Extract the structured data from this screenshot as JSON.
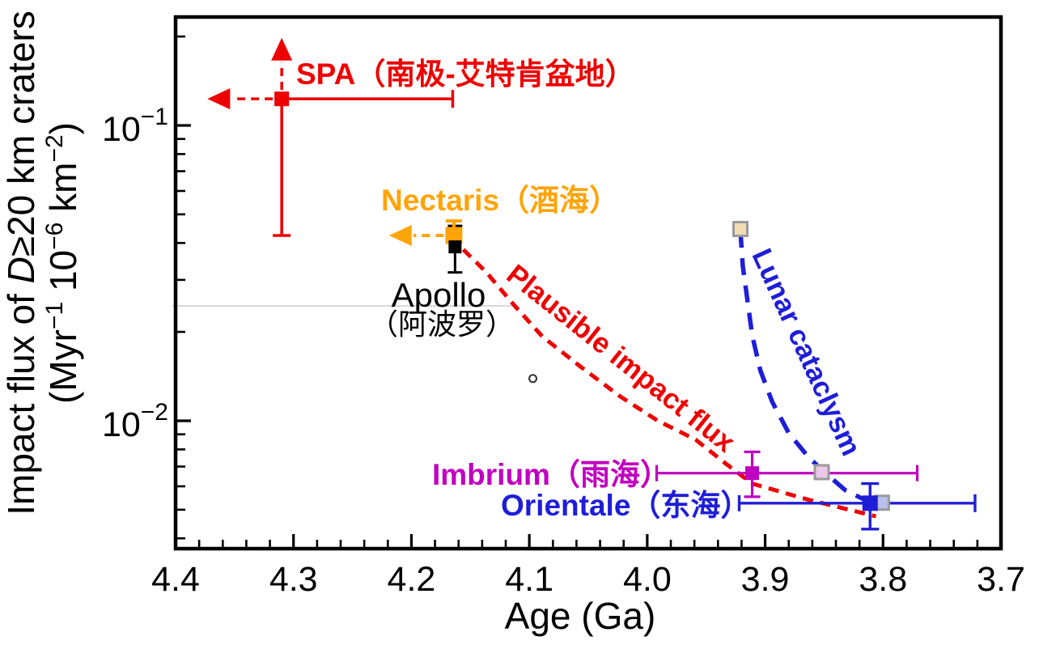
{
  "chart_data": {
    "type": "scatter",
    "title": "",
    "xlabel": "Age (Ga)",
    "ylabel": "Impact flux of D≥20 km craters (Myr−1 10−6 km−2)",
    "ylabel_line1_parts": [
      {
        "t": "Impact flux of "
      },
      {
        "t": "D",
        "i": true
      },
      {
        "t": "≥20 km craters"
      }
    ],
    "ylabel_line2_parts": [
      {
        "t": "(Myr"
      },
      {
        "t": "−1",
        "sup": true
      },
      {
        "t": " 10"
      },
      {
        "t": "−6",
        "sup": true
      },
      {
        "t": " km"
      },
      {
        "t": "−2",
        "sup": true
      },
      {
        "t": ")"
      }
    ],
    "x_axis": {
      "min": 4.4,
      "max": 3.7,
      "reversed": true,
      "tick_values": [
        4.4,
        4.3,
        4.2,
        4.1,
        4.0,
        3.9,
        3.8,
        3.7
      ],
      "tick_labels": [
        "4.4",
        "4.3",
        "4.2",
        "4.1",
        "4.0",
        "3.9",
        "3.8",
        "3.7"
      ],
      "minor_tick_step": 0.02,
      "grid": false
    },
    "y_axis": {
      "scale": "log",
      "range_top": 0.233,
      "range_bottom": 0.0037,
      "major_ticks": [
        {
          "value": 0.1,
          "base": "10",
          "exp": "−1"
        },
        {
          "value": 0.01,
          "base": "10",
          "exp": "−2"
        }
      ],
      "minor_ticks": [
        0.2,
        0.09,
        0.08,
        0.07,
        0.06,
        0.05,
        0.04,
        0.03,
        0.02,
        0.009,
        0.008,
        0.007,
        0.006,
        0.005,
        0.004
      ],
      "grid": false
    },
    "series": [
      {
        "id": "spa",
        "label": "SPA（南极-艾特肯盆地）",
        "color": "#ee0000",
        "marker": "filled-square",
        "marker_size": 18,
        "point": {
          "age": 4.31,
          "flux": 0.123
        },
        "x_error": {
          "solid_cap_to_age": 4.165
        },
        "y_error": {
          "solid_cap_to_flux": 0.0424
        },
        "arrows": [
          {
            "dir": "up",
            "to_flux": 0.198,
            "style": "dashed"
          },
          {
            "dir": "left",
            "to_age": 4.373,
            "style": "dashed"
          }
        ]
      },
      {
        "id": "nectaris",
        "label": "Nectaris（酒海）",
        "color": "#ffa408",
        "marker": "filled-square",
        "marker_size": 21,
        "point": {
          "age": 4.164,
          "flux": 0.0424
        },
        "y_error": {
          "upper_cap_flux": 0.0475
        },
        "arrows": [
          {
            "dir": "left",
            "to_age": 4.219,
            "style": "dashed"
          }
        ]
      },
      {
        "id": "apollo",
        "label_en": "Apollo",
        "label_zh": "（阿波罗）",
        "color": "#000000",
        "marker": "filled-square",
        "marker_size": 16,
        "point": {
          "age": 4.163,
          "flux": 0.0388
        },
        "y_error": {
          "upper": 0.0457,
          "lower": 0.0318
        }
      },
      {
        "id": "imbrium",
        "label": "Imbrium（雨海）",
        "color": "#c000c0",
        "marker": "filled-square",
        "marker_size": 17,
        "point": {
          "age": 3.911,
          "flux": 0.00665
        },
        "y_error": {
          "upper": 0.00785,
          "lower": 0.00553
        },
        "x_error": {
          "older": 3.992,
          "younger": 3.771
        }
      },
      {
        "id": "orientale",
        "label": "Orientale（东海）",
        "color": "#1e1ed8",
        "marker": "filled-square",
        "marker_size": 19,
        "point": {
          "age": 3.811,
          "flux": 0.00526
        },
        "y_error": {
          "upper": 0.00613,
          "lower": 0.0043
        },
        "x_error": {
          "older": 3.922,
          "younger": 3.722
        }
      }
    ],
    "alt_points": [
      {
        "id": "nectaris-cataclysm-age",
        "age": 3.921,
        "flux": 0.0446,
        "fill": "#f3dcb2",
        "stroke": "#9a9a9a",
        "marker": "open-square",
        "size": 17
      },
      {
        "id": "imbrium-cataclysm-age",
        "age": 3.852,
        "flux": 0.0067,
        "fill": "#ecc9e8",
        "stroke": "#9a9a9a",
        "marker": "open-square",
        "size": 17
      },
      {
        "id": "orientale-cataclysm-age",
        "age": 3.801,
        "flux": 0.00528,
        "fill": "#b9c0ee",
        "stroke": "#9a9a9a",
        "marker": "open-square",
        "size": 17
      }
    ],
    "curves": [
      {
        "id": "plausible-impact-flux",
        "label": "Plausible impact flux",
        "color": "#ee0000",
        "style": "dashed",
        "points": [
          [
            4.156,
            0.038
          ],
          [
            4.137,
            0.032
          ],
          [
            4.112,
            0.0244
          ],
          [
            4.089,
            0.0193
          ],
          [
            4.057,
            0.0153
          ],
          [
            4.023,
            0.0121
          ],
          [
            3.991,
            0.01
          ],
          [
            3.959,
            0.00864
          ],
          [
            3.933,
            0.00714
          ],
          [
            3.911,
            0.00613
          ],
          [
            3.863,
            0.0054
          ],
          [
            3.806,
            0.00475
          ]
        ]
      },
      {
        "id": "lunar-cataclysm",
        "label": "Lunar cataclysm",
        "color": "#1e1ed8",
        "style": "dashed",
        "points": [
          [
            3.921,
            0.044
          ],
          [
            3.919,
            0.0335
          ],
          [
            3.915,
            0.0256
          ],
          [
            3.911,
            0.0195
          ],
          [
            3.904,
            0.0148
          ],
          [
            3.894,
            0.0116
          ],
          [
            3.88,
            0.00909
          ],
          [
            3.863,
            0.00751
          ],
          [
            3.848,
            0.00661
          ],
          [
            3.832,
            0.00582
          ],
          [
            3.811,
            0.00529
          ]
        ]
      }
    ],
    "artifacts": {
      "faint_line": {
        "flux": 0.0245,
        "from_age": 4.403,
        "to_age": 4.11,
        "color": "#d9d9d9"
      },
      "stray_circle_mark": {
        "age": 4.097,
        "flux": 0.0139
      }
    }
  }
}
